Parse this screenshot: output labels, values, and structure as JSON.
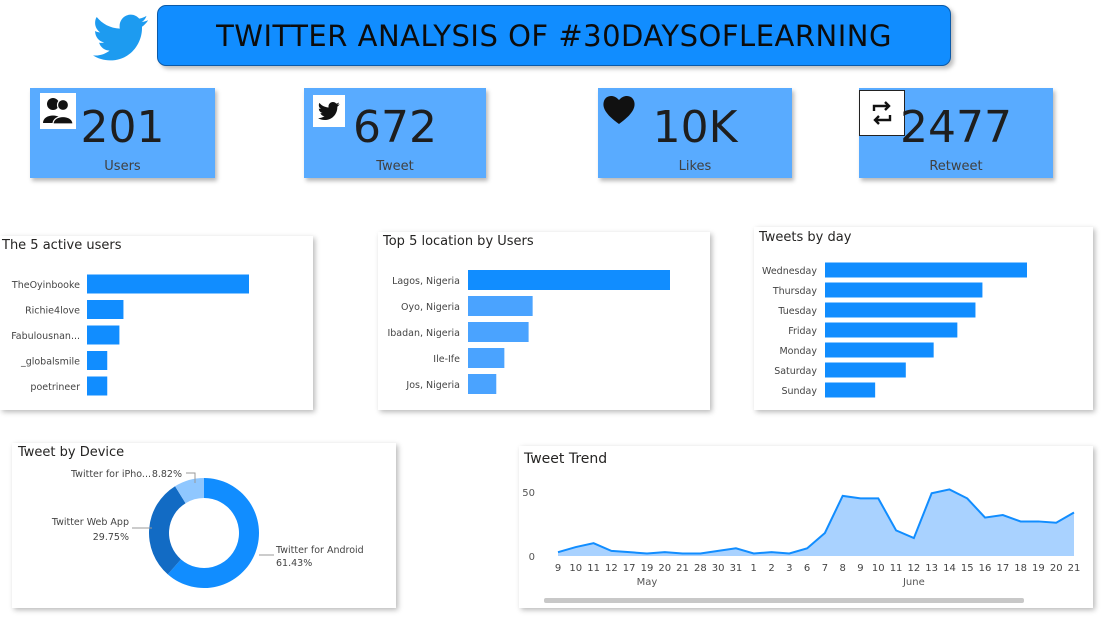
{
  "header": {
    "title": "TWITTER ANALYSIS OF #30DAYSOFLEARNING"
  },
  "kpis": [
    {
      "value": "201",
      "label": "Users",
      "icon": "users-icon"
    },
    {
      "value": "672",
      "label": "Tweet",
      "icon": "twitter-bird-icon"
    },
    {
      "value": "10K",
      "label": "Likes",
      "icon": "heart-icon"
    },
    {
      "value": "2477",
      "label": "Retweet",
      "icon": "retweet-icon"
    }
  ],
  "colors": {
    "accent": "#118dff",
    "kpi_bg": "#59abff",
    "bar": "#118dff",
    "bar_light": "#4aa3ff",
    "area": "#a9d2ff",
    "donut_dark": "#126bc4",
    "donut_light": "#8fc7ff"
  },
  "chart_data": [
    {
      "id": "active_users",
      "type": "bar",
      "orientation": "horizontal",
      "title": "The 5 active users",
      "categories": [
        "TheOyinbooke",
        "Richie4love",
        "Fabulousnan...",
        "_globalsmile",
        "poetrineer"
      ],
      "values": [
        40,
        9,
        8,
        5,
        5
      ]
    },
    {
      "id": "top_locations",
      "type": "bar",
      "orientation": "horizontal",
      "title": "Top 5 location by Users",
      "categories": [
        "Lagos, Nigeria",
        "Oyo, Nigeria",
        "Ibadan, Nigeria",
        "Ile-Ife",
        "Jos, Nigeria"
      ],
      "values": [
        50,
        16,
        15,
        9,
        7
      ]
    },
    {
      "id": "tweets_by_day",
      "type": "bar",
      "orientation": "horizontal",
      "title": "Tweets by day",
      "categories": [
        "Wednesday",
        "Thursday",
        "Tuesday",
        "Friday",
        "Monday",
        "Saturday",
        "Sunday"
      ],
      "values": [
        145,
        113,
        108,
        95,
        78,
        58,
        36
      ]
    },
    {
      "id": "tweet_by_device",
      "type": "pie",
      "donut": true,
      "title": "Tweet by Device",
      "slices": [
        {
          "name": "Twitter for Android",
          "label": "61.43%",
          "value": 61.43
        },
        {
          "name": "Twitter Web App",
          "label": "29.75%",
          "value": 29.75
        },
        {
          "name": "Twitter for iPho...",
          "label": "8.82%",
          "value": 8.82
        }
      ]
    },
    {
      "id": "tweet_trend",
      "type": "area",
      "title": "Tweet Trend",
      "x": [
        "9",
        "10",
        "11",
        "12",
        "17",
        "19",
        "20",
        "21",
        "28",
        "30",
        "31",
        "1",
        "2",
        "3",
        "6",
        "7",
        "8",
        "9",
        "10",
        "11",
        "12",
        "13",
        "14",
        "15",
        "16",
        "17",
        "18",
        "19",
        "20",
        "21"
      ],
      "values": [
        3,
        7,
        10,
        4,
        3,
        2,
        3,
        2,
        2,
        4,
        6,
        2,
        3,
        2,
        6,
        18,
        47,
        45,
        45,
        20,
        14,
        49,
        52,
        45,
        30,
        32,
        27,
        27,
        26,
        34
      ],
      "month_labels": [
        "May",
        "June"
      ],
      "y_ticks": [
        "0",
        "50"
      ],
      "ylim": [
        0,
        60
      ]
    }
  ]
}
